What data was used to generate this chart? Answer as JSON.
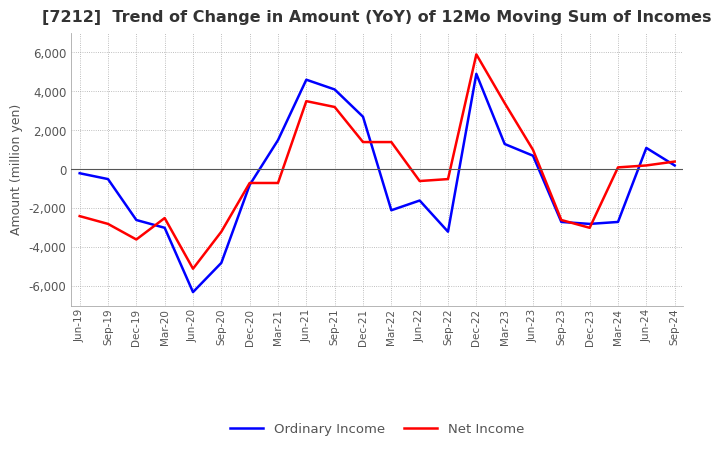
{
  "title": "[7212]  Trend of Change in Amount (YoY) of 12Mo Moving Sum of Incomes",
  "ylabel": "Amount (million yen)",
  "ylim": [
    -7000,
    7000
  ],
  "yticks": [
    -6000,
    -4000,
    -2000,
    0,
    2000,
    4000,
    6000
  ],
  "x_labels": [
    "Jun-19",
    "Sep-19",
    "Dec-19",
    "Mar-20",
    "Jun-20",
    "Sep-20",
    "Dec-20",
    "Mar-21",
    "Jun-21",
    "Sep-21",
    "Dec-21",
    "Mar-22",
    "Jun-22",
    "Sep-22",
    "Dec-22",
    "Mar-23",
    "Jun-23",
    "Sep-23",
    "Dec-23",
    "Mar-24",
    "Jun-24",
    "Sep-24"
  ],
  "ordinary_income": [
    -200,
    -500,
    -2600,
    -3000,
    -6300,
    -4800,
    -800,
    1500,
    4600,
    4100,
    2700,
    -2100,
    -1600,
    -3200,
    4900,
    1300,
    700,
    -2700,
    -2800,
    -2700,
    1100,
    200
  ],
  "net_income": [
    -2400,
    -2800,
    -3600,
    -2500,
    -5100,
    -3200,
    -700,
    -700,
    3500,
    3200,
    1400,
    1400,
    -600,
    -500,
    5900,
    3400,
    1000,
    -2600,
    -3000,
    100,
    200,
    400
  ],
  "ordinary_color": "#0000ff",
  "net_color": "#ff0000",
  "line_width": 1.8,
  "background_color": "#ffffff",
  "grid_color": "#aaaaaa",
  "title_color": "#333333",
  "axis_label_color": "#555555",
  "tick_label_color": "#555555"
}
